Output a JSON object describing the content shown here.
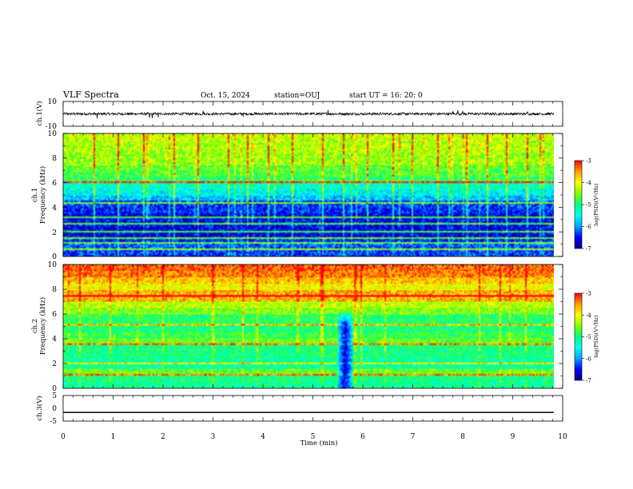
{
  "header": {
    "title": "VLF Spectra",
    "date": "Oct. 15, 2024",
    "station": "station=OUJ",
    "start": "start UT =  16: 20: 0"
  },
  "chart_data": [
    {
      "type": "line",
      "panel": "ch1-waveform",
      "ylabel": "ch.1(V)",
      "xlim": [
        0,
        9.82
      ],
      "ylim": [
        -10,
        10
      ],
      "yticks": [
        "10",
        "-10"
      ],
      "baseline_v": 0,
      "noise_amplitude_v": 1,
      "spikes": [
        {
          "t": 0.68,
          "v": -3.8
        },
        {
          "t": 1.73,
          "v": -3.2
        },
        {
          "t": 1.78,
          "v": -3.6
        },
        {
          "t": 1.9,
          "v": -2.8
        },
        {
          "t": 2.8,
          "v": 2.6
        },
        {
          "t": 3.6,
          "v": -2.2
        },
        {
          "t": 5.3,
          "v": 3.2
        },
        {
          "t": 7.8,
          "v": 2.2
        },
        {
          "t": 7.9,
          "v": 3.0
        },
        {
          "t": 8.0,
          "v": 2.4
        },
        {
          "t": 9.3,
          "v": 2.0
        }
      ]
    },
    {
      "type": "heatmap",
      "panel": "ch1-spectrogram",
      "ylabel": [
        "ch.1",
        "Frequency (kHz)"
      ],
      "xlim": [
        0,
        9.82
      ],
      "ylim": [
        0,
        10
      ],
      "yticks": [
        "0",
        "2",
        "4",
        "6",
        "8",
        "10"
      ],
      "colorbar": {
        "label": "log(PSD)(V²/Hz)",
        "range": [
          -7,
          -3
        ],
        "ticks": [
          "-3",
          "-4",
          "-5",
          "-6",
          "-7"
        ]
      },
      "frequency_khz": [
        0.25,
        0.75,
        1.25,
        1.75,
        2.25,
        2.75,
        3.25,
        3.75,
        4.25,
        4.75,
        5.25,
        5.75,
        6.25,
        6.75,
        7.25,
        7.75,
        8.25,
        8.75,
        9.25,
        9.75
      ],
      "mean_log_psd": [
        -6.3,
        -6.2,
        -6.4,
        -6.6,
        -6.6,
        -6.5,
        -6.6,
        -6.4,
        -6.3,
        -5.8,
        -5.5,
        -5.3,
        -4.9,
        -4.7,
        -4.6,
        -4.4,
        -4.4,
        -4.3,
        -4.3,
        -4.2
      ],
      "sferic_times_min": [
        0.6,
        1.1,
        1.6,
        2.2,
        2.7,
        3.3,
        3.7,
        4.1,
        4.6,
        5.2,
        5.6,
        6.1,
        6.6,
        7.0,
        7.5,
        8.1,
        8.5,
        8.9,
        9.3
      ]
    },
    {
      "type": "heatmap",
      "panel": "ch2-spectrogram",
      "ylabel": [
        "ch.2",
        "Frequency (kHz)"
      ],
      "xlim": [
        0,
        9.82
      ],
      "ylim": [
        0,
        10
      ],
      "yticks": [
        "0",
        "2",
        "4",
        "6",
        "8",
        "10"
      ],
      "colorbar": {
        "label": "log(PSD)(V²/Hz)",
        "range": [
          -7,
          -3
        ],
        "ticks": [
          "-3",
          "-4",
          "-5",
          "-6",
          "-7"
        ]
      },
      "frequency_khz": [
        0.25,
        0.75,
        1.25,
        1.75,
        2.25,
        2.75,
        3.25,
        3.75,
        4.25,
        4.75,
        5.25,
        5.75,
        6.25,
        6.75,
        7.25,
        7.75,
        8.25,
        8.75,
        9.25,
        9.75
      ],
      "mean_log_psd": [
        -5.1,
        -5.0,
        -4.6,
        -5.1,
        -5.1,
        -5.0,
        -5.0,
        -4.6,
        -4.8,
        -5.0,
        -4.9,
        -4.9,
        -4.5,
        -4.3,
        -3.6,
        -3.6,
        -4.0,
        -3.7,
        -3.4,
        -3.3
      ],
      "dropout": {
        "t_start": 5.5,
        "t_end": 5.8,
        "freq_top_khz": 6.3,
        "log_psd": -6.6
      }
    },
    {
      "type": "line",
      "panel": "ch3-waveform",
      "ylabel": "ch.3(V)",
      "xlim": [
        0,
        9.82
      ],
      "ylim": [
        -5,
        5
      ],
      "yticks": [
        "5",
        "0",
        "-5"
      ],
      "x": [
        0,
        9.82
      ],
      "y": [
        -1.6,
        -1.6
      ]
    }
  ],
  "x_axis": {
    "label": "Time (min)",
    "ticks": [
      "0",
      "1",
      "2",
      "3",
      "4",
      "5",
      "6",
      "7",
      "8",
      "9",
      "10"
    ],
    "range": [
      0,
      10
    ]
  },
  "colors": {
    "line": "#000000",
    "colormap": [
      "#000080",
      "#0000ff",
      "#00a0ff",
      "#00ffff",
      "#00ff80",
      "#80ff00",
      "#ffff00",
      "#ffa000",
      "#ff0000",
      "#ffffff"
    ]
  }
}
